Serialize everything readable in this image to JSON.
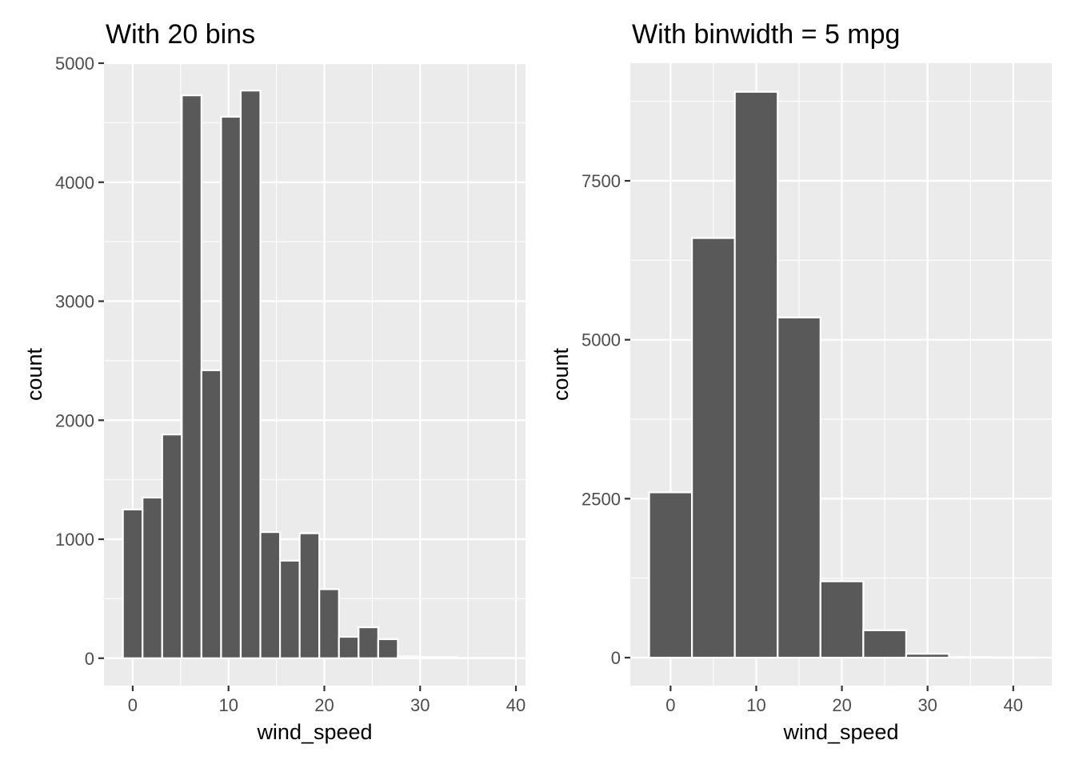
{
  "colors": {
    "bar_fill": "#595959",
    "bar_stroke": "#ffffff",
    "panel_bg": "#ebebeb",
    "grid": "#ffffff",
    "tick_text": "#4d4d4d"
  },
  "chart_data": [
    {
      "type": "bar",
      "title": "With 20 bins",
      "xlabel": "wind_speed",
      "ylabel": "count",
      "xlim": [
        -3,
        41
      ],
      "ylim": [
        -230,
        5000
      ],
      "xticks": [
        0,
        10,
        20,
        30,
        40
      ],
      "xtick_labels": [
        "0",
        "10",
        "20",
        "30",
        "40"
      ],
      "yticks": [
        0,
        1000,
        2000,
        3000,
        4000,
        5000
      ],
      "ytick_labels": [
        "0",
        "1000",
        "2000",
        "3000",
        "4000",
        "5000"
      ],
      "grid": true,
      "bin_width": 2.05,
      "bin_centers": [
        0,
        2.05,
        4.1,
        6.15,
        8.2,
        10.25,
        12.3,
        14.35,
        16.4,
        18.45,
        20.5,
        22.55,
        24.6,
        26.65,
        28.7,
        30.75,
        32.8,
        34.85,
        36.9,
        38.95
      ],
      "values": [
        1250,
        1350,
        1880,
        4730,
        2420,
        4550,
        4770,
        1060,
        820,
        1050,
        580,
        180,
        260,
        160,
        15,
        10,
        10,
        3,
        3,
        3
      ]
    },
    {
      "type": "bar",
      "title": "With binwidth = 5 mpg",
      "xlabel": "wind_speed",
      "ylabel": "count",
      "xlim": [
        -4.7,
        44.5
      ],
      "ylim": [
        -440,
        9350
      ],
      "xticks": [
        0,
        10,
        20,
        30,
        40
      ],
      "xtick_labels": [
        "0",
        "10",
        "20",
        "30",
        "40"
      ],
      "yticks": [
        0,
        2500,
        5000,
        7500
      ],
      "ytick_labels": [
        "0",
        "2500",
        "5000",
        "7500"
      ],
      "grid": true,
      "bin_width": 5,
      "bin_centers": [
        0,
        5,
        10,
        15,
        20,
        25,
        30,
        35,
        40
      ],
      "values": [
        2600,
        6600,
        8900,
        5350,
        1200,
        430,
        60,
        10,
        3
      ]
    }
  ]
}
